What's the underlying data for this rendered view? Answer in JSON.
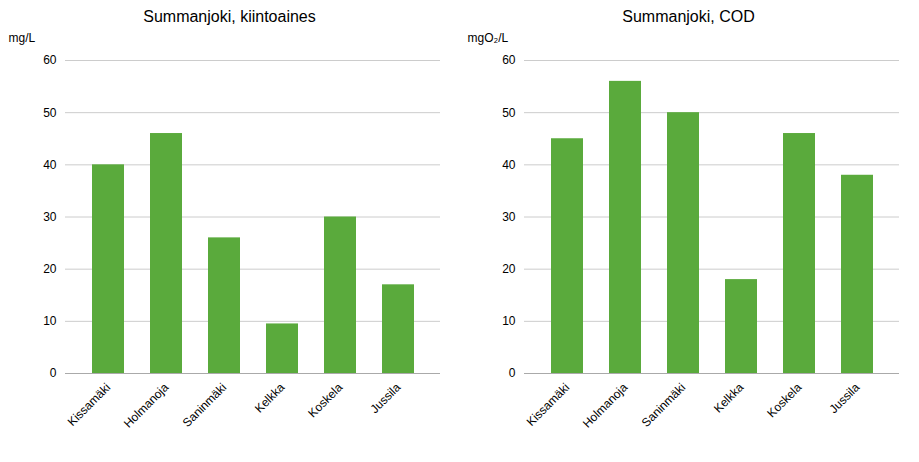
{
  "chart_data": [
    {
      "type": "bar",
      "title": "Summanjoki, kiintoaines",
      "ylabel": "mg/L",
      "categories": [
        "Kissamäki",
        "Holmanoja",
        "Saninmäki",
        "Kelkka",
        "Koskela",
        "Jussila"
      ],
      "values": [
        40,
        46,
        26,
        9.5,
        30,
        17
      ],
      "color": "#5aaa3c",
      "ylim": [
        0,
        60
      ],
      "yticks": [
        0,
        10,
        20,
        30,
        40,
        50,
        60
      ],
      "grid": true
    },
    {
      "type": "bar",
      "title": "Summanjoki, COD",
      "ylabel": "mgO₂/L",
      "categories": [
        "Kissamäki",
        "Holmanoja",
        "Saninmäki",
        "Kelkka",
        "Koskela",
        "Jussila"
      ],
      "values": [
        45,
        56,
        50,
        18,
        46,
        38
      ],
      "color": "#5aaa3c",
      "ylim": [
        0,
        60
      ],
      "yticks": [
        0,
        10,
        20,
        30,
        40,
        50,
        60
      ],
      "grid": true
    }
  ]
}
